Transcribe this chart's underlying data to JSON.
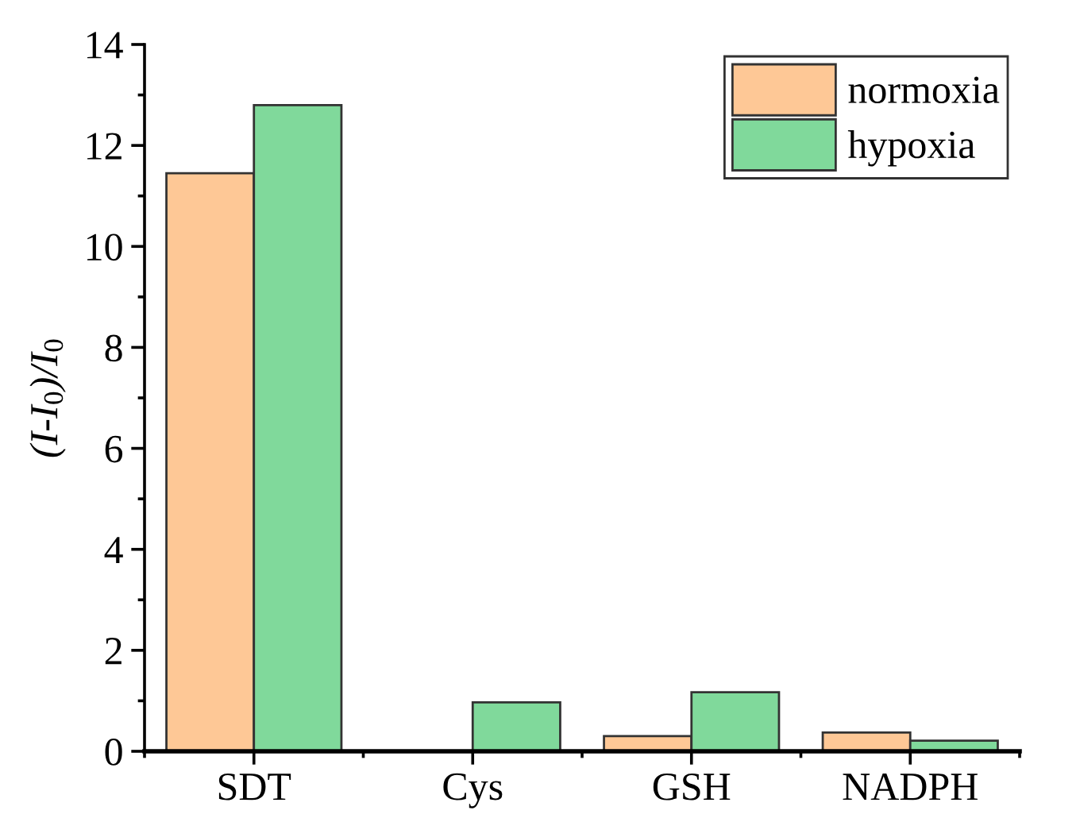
{
  "chart_data": {
    "type": "bar",
    "ylabel": "(I-I$_{0}$)/I$_{0}$",
    "categories": [
      "SDT",
      "Cys",
      "GSH",
      "NADPH"
    ],
    "series": [
      {
        "name": "normoxia",
        "color": "#fec896",
        "values": [
          11.45,
          null,
          0.3,
          0.37
        ]
      },
      {
        "name": "hypoxia",
        "color": "#80d99b",
        "values": [
          12.8,
          0.97,
          1.17,
          0.21
        ]
      }
    ],
    "ylim": [
      0,
      14
    ],
    "yticks": [
      0,
      2,
      4,
      6,
      8,
      10,
      12,
      14
    ],
    "grid": false,
    "legend": "top right"
  }
}
